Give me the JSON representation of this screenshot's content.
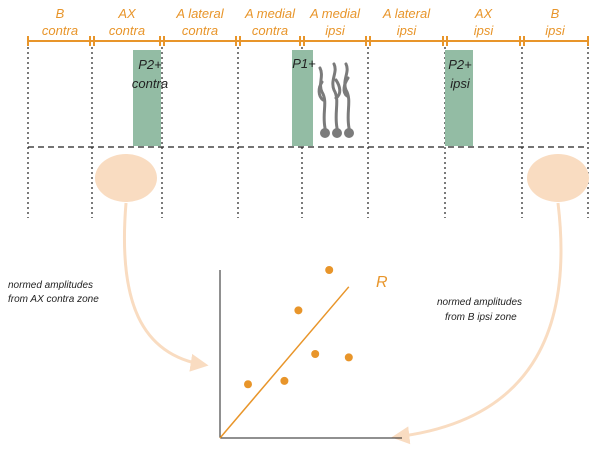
{
  "colors": {
    "zone": "#e8952a",
    "stain": "#93bca4",
    "roi": "#f9dcc1",
    "arrow": "#f9dcc1",
    "cell": "#7b7b7b",
    "ink": "#222222",
    "point": "#e8952a"
  },
  "zones": [
    {
      "line1": "B",
      "line2": "contra"
    },
    {
      "line1": "AX",
      "line2": "contra"
    },
    {
      "line1": "A lateral",
      "line2": "contra"
    },
    {
      "line1": "A medial",
      "line2": "contra"
    },
    {
      "line1": "A medial",
      "line2": "ipsi"
    },
    {
      "line1": "A lateral",
      "line2": "ipsi"
    },
    {
      "line1": "AX",
      "line2": "ipsi"
    },
    {
      "line1": "B",
      "line2": "ipsi"
    }
  ],
  "stains": [
    {
      "line1": "P2+",
      "line2": "contra"
    },
    {
      "line1": "P1+",
      "line2": ""
    },
    {
      "line1": "P2+",
      "line2": "ipsi"
    }
  ],
  "captions": {
    "left_line1": "normed amplitudes",
    "left_line2": "from AX contra zone",
    "right_line1": "normed amplitudes",
    "right_line2": "from B ipsi zone"
  },
  "regression_label": "R",
  "icons": {
    "cell": "purkinje-cell-icon",
    "roi": "recording-zone-ellipse"
  },
  "chart_data": {
    "type": "scatter",
    "title": "",
    "xlabel": "",
    "ylabel": "",
    "xlim": [
      0,
      10
    ],
    "ylim": [
      0,
      10
    ],
    "grid": false,
    "points": [
      {
        "x": 1.0,
        "y": 3.2
      },
      {
        "x": 2.3,
        "y": 3.4
      },
      {
        "x": 2.8,
        "y": 7.6
      },
      {
        "x": 3.4,
        "y": 5.0
      },
      {
        "x": 3.9,
        "y": 10.0
      },
      {
        "x": 4.6,
        "y": 4.8
      }
    ],
    "regression": {
      "label": "R",
      "x0": 0,
      "y0": 0,
      "x1": 4.6,
      "y1": 9.0
    }
  }
}
